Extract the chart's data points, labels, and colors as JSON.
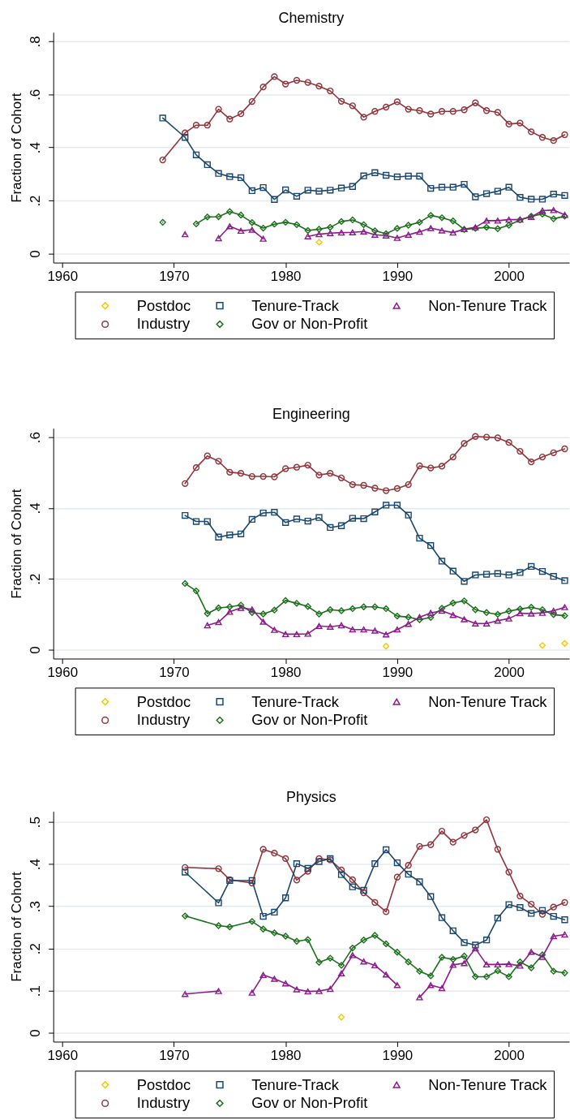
{
  "chart_data": [
    {
      "type": "line",
      "title": "Chemistry",
      "ylabel": "Fraction of Cohort",
      "x": [
        1969,
        1971,
        1972,
        1973,
        1974,
        1975,
        1976,
        1977,
        1978,
        1979,
        1980,
        1981,
        1982,
        1983,
        1984,
        1985,
        1986,
        1987,
        1988,
        1989,
        1990,
        1991,
        1992,
        1993,
        1994,
        1995,
        1996,
        1997,
        1998,
        1999,
        2000,
        2001,
        2002,
        2003,
        2004,
        2005
      ],
      "series": [
        {
          "name": "Postdoc",
          "type": "scatter",
          "color": "#f5c800",
          "marker": "diamond",
          "values": [
            null,
            null,
            null,
            null,
            null,
            null,
            null,
            null,
            null,
            null,
            null,
            null,
            null,
            0.043,
            null,
            null,
            null,
            null,
            null,
            null,
            null,
            null,
            null,
            null,
            null,
            null,
            null,
            null,
            null,
            null,
            null,
            null,
            null,
            null,
            null,
            null
          ]
        },
        {
          "name": "Industry",
          "color": "#90353b",
          "marker": "circle",
          "values": [
            0.353,
            0.455,
            0.484,
            0.484,
            0.544,
            0.507,
            0.527,
            0.573,
            0.628,
            0.667,
            0.639,
            0.653,
            0.645,
            0.631,
            0.613,
            0.574,
            0.557,
            0.514,
            0.536,
            0.552,
            0.572,
            0.544,
            0.539,
            0.526,
            0.536,
            0.536,
            0.542,
            0.568,
            0.539,
            0.532,
            0.488,
            0.492,
            0.459,
            0.438,
            0.426,
            0.448
          ]
        },
        {
          "name": "Tenure-Track",
          "color": "#1a476f",
          "marker": "square",
          "values": [
            0.511,
            0.438,
            0.372,
            0.335,
            0.302,
            0.29,
            0.286,
            0.237,
            0.249,
            0.204,
            0.24,
            0.216,
            0.239,
            0.235,
            0.239,
            0.247,
            0.253,
            0.293,
            0.305,
            0.295,
            0.289,
            0.292,
            0.292,
            0.246,
            0.25,
            0.25,
            0.261,
            0.214,
            0.226,
            0.235,
            0.25,
            0.212,
            0.205,
            0.205,
            0.224,
            0.219
          ]
        },
        {
          "name": "Gov or Non-Profit",
          "color": "#1a701a",
          "marker": "diamond",
          "values": [
            0.118,
            null,
            0.112,
            0.138,
            0.139,
            0.158,
            0.145,
            0.117,
            0.096,
            0.111,
            0.118,
            0.109,
            0.087,
            0.092,
            0.099,
            0.121,
            0.127,
            0.109,
            0.086,
            0.075,
            0.095,
            0.107,
            0.118,
            0.144,
            0.135,
            0.123,
            0.091,
            0.095,
            0.099,
            0.094,
            0.107,
            0.127,
            0.141,
            0.149,
            0.131,
            0.141
          ]
        },
        {
          "name": "Non-Tenure Track",
          "color": "#8b1a8b",
          "marker": "triangle",
          "values": [
            null,
            0.073,
            null,
            null,
            0.058,
            0.103,
            0.086,
            0.09,
            0.056,
            null,
            null,
            null,
            0.065,
            0.073,
            0.077,
            0.079,
            0.08,
            0.083,
            0.071,
            0.068,
            0.059,
            0.071,
            0.082,
            0.096,
            0.087,
            0.079,
            0.092,
            0.099,
            0.124,
            0.124,
            0.128,
            0.128,
            0.138,
            0.162,
            0.164,
            0.146
          ]
        }
      ],
      "xlim": [
        1959.2,
        2005.4
      ],
      "xticks": [
        1960,
        1970,
        1980,
        1990,
        2000
      ],
      "ylim": [
        -0.034,
        0.834
      ],
      "yticks": [
        {
          "value": 0,
          "label": "0"
        },
        {
          "value": 0.2,
          "label": ".2"
        },
        {
          "value": 0.4,
          "label": ".4"
        },
        {
          "value": 0.6,
          "label": ".6"
        },
        {
          "value": 0.8,
          "label": ".8"
        }
      ],
      "grid": "y",
      "legend": "bottom",
      "line_style": "solid"
    },
    {
      "type": "line",
      "title": "Engineering",
      "ylabel": "Fraction of Cohort",
      "x": [
        1971,
        1972,
        1973,
        1974,
        1975,
        1976,
        1977,
        1978,
        1979,
        1980,
        1981,
        1982,
        1983,
        1984,
        1985,
        1986,
        1987,
        1988,
        1989,
        1990,
        1991,
        1992,
        1993,
        1994,
        1995,
        1996,
        1997,
        1998,
        1999,
        2000,
        2001,
        2002,
        2003,
        2004,
        2005
      ],
      "series": [
        {
          "name": "Postdoc",
          "type": "scatter",
          "color": "#f5c800",
          "marker": "diamond",
          "values": [
            null,
            null,
            null,
            null,
            null,
            null,
            null,
            null,
            null,
            null,
            null,
            null,
            null,
            null,
            null,
            null,
            null,
            null,
            0.01,
            null,
            null,
            null,
            null,
            null,
            null,
            null,
            null,
            null,
            null,
            null,
            null,
            null,
            0.012,
            null,
            0.018
          ]
        },
        {
          "name": "Industry",
          "color": "#90353b",
          "marker": "circle",
          "values": [
            0.469,
            0.514,
            0.547,
            0.532,
            0.501,
            0.498,
            0.489,
            0.489,
            0.488,
            0.511,
            0.515,
            0.521,
            0.493,
            0.498,
            0.485,
            0.466,
            0.464,
            0.456,
            0.449,
            0.455,
            0.466,
            0.519,
            0.513,
            0.518,
            0.544,
            0.582,
            0.602,
            0.6,
            0.598,
            0.585,
            0.56,
            0.53,
            0.544,
            0.556,
            0.567
          ]
        },
        {
          "name": "Tenure-Track",
          "color": "#1a476f",
          "marker": "square",
          "values": [
            0.379,
            0.362,
            0.362,
            0.318,
            0.324,
            0.327,
            0.368,
            0.386,
            0.388,
            0.359,
            0.369,
            0.363,
            0.373,
            0.345,
            0.35,
            0.371,
            0.37,
            0.389,
            0.408,
            0.408,
            0.38,
            0.315,
            0.294,
            0.25,
            0.222,
            0.193,
            0.211,
            0.213,
            0.215,
            0.211,
            0.218,
            0.235,
            0.221,
            0.207,
            0.195
          ]
        },
        {
          "name": "Gov or Non-Profit",
          "color": "#1a701a",
          "marker": "diamond",
          "values": [
            0.187,
            0.166,
            0.102,
            0.118,
            0.121,
            0.126,
            0.105,
            0.101,
            0.112,
            0.139,
            0.131,
            0.122,
            0.101,
            0.113,
            0.11,
            0.116,
            0.121,
            0.121,
            0.116,
            0.095,
            0.092,
            0.085,
            0.091,
            0.117,
            0.132,
            0.138,
            0.113,
            0.105,
            0.1,
            0.109,
            0.115,
            0.12,
            0.113,
            0.099,
            0.096
          ]
        },
        {
          "name": "Non-Tenure Track",
          "color": "#8b1a8b",
          "marker": "triangle",
          "values": [
            null,
            null,
            0.069,
            0.078,
            0.107,
            0.118,
            0.114,
            0.079,
            0.056,
            0.044,
            0.044,
            0.045,
            0.067,
            0.065,
            0.069,
            0.057,
            0.057,
            0.054,
            0.043,
            0.057,
            0.073,
            0.092,
            0.104,
            0.11,
            0.098,
            0.086,
            0.074,
            0.074,
            0.082,
            0.088,
            0.103,
            0.102,
            0.104,
            0.11,
            0.12
          ]
        }
      ],
      "xlim": [
        1959.2,
        2005.4
      ],
      "xticks": [
        1960,
        1970,
        1980,
        1990,
        2000
      ],
      "ylim": [
        -0.025,
        0.625
      ],
      "yticks": [
        {
          "value": 0,
          "label": "0"
        },
        {
          "value": 0.2,
          "label": ".2"
        },
        {
          "value": 0.4,
          "label": ".4"
        },
        {
          "value": 0.6,
          "label": ".6"
        }
      ],
      "grid": "y",
      "legend": "bottom",
      "line_style": "solid"
    },
    {
      "type": "line",
      "title": "Physics",
      "ylabel": "Fraction of Cohort",
      "x": [
        1971,
        1974,
        1975,
        1977,
        1978,
        1979,
        1980,
        1981,
        1982,
        1983,
        1984,
        1985,
        1986,
        1987,
        1988,
        1989,
        1990,
        1991,
        1992,
        1993,
        1994,
        1995,
        1996,
        1997,
        1998,
        1999,
        2000,
        2001,
        2002,
        2003,
        2004,
        2005
      ],
      "series": [
        {
          "name": "Postdoc",
          "type": "scatter",
          "color": "#f5c800",
          "marker": "diamond",
          "values": [
            null,
            null,
            null,
            null,
            null,
            null,
            null,
            null,
            null,
            null,
            null,
            0.037,
            null,
            null,
            null,
            null,
            null,
            null,
            null,
            null,
            null,
            null,
            null,
            null,
            null,
            null,
            null,
            null,
            null,
            null,
            null,
            null
          ]
        },
        {
          "name": "Industry",
          "color": "#90353b",
          "marker": "circle",
          "values": [
            0.392,
            0.389,
            0.363,
            0.355,
            0.435,
            0.426,
            0.413,
            0.362,
            0.383,
            0.413,
            0.41,
            0.386,
            0.363,
            0.332,
            0.309,
            0.287,
            0.369,
            0.397,
            0.442,
            0.446,
            0.478,
            0.452,
            0.468,
            0.481,
            0.505,
            0.435,
            0.381,
            0.324,
            0.305,
            0.281,
            0.298,
            0.309
          ]
        },
        {
          "name": "Tenure-Track",
          "color": "#1a476f",
          "marker": "square",
          "values": [
            0.381,
            0.308,
            0.361,
            0.361,
            0.276,
            0.286,
            0.32,
            0.401,
            0.39,
            0.406,
            0.413,
            0.375,
            0.346,
            0.338,
            0.401,
            0.434,
            0.403,
            0.376,
            0.358,
            0.323,
            0.273,
            0.242,
            0.214,
            0.208,
            0.22,
            0.272,
            0.304,
            0.297,
            0.283,
            0.29,
            0.276,
            0.268
          ]
        },
        {
          "name": "Gov or Non-Profit",
          "color": "#1a701a",
          "marker": "diamond",
          "values": [
            0.277,
            0.254,
            0.251,
            0.264,
            0.246,
            0.237,
            0.229,
            0.217,
            0.221,
            0.167,
            0.177,
            0.16,
            0.201,
            0.22,
            0.231,
            0.211,
            0.191,
            0.168,
            0.146,
            0.135,
            0.179,
            0.174,
            0.182,
            0.133,
            0.133,
            0.147,
            0.133,
            0.168,
            0.154,
            0.185,
            0.146,
            0.142
          ]
        },
        {
          "name": "Non-Tenure Track",
          "color": "#8b1a8b",
          "marker": "triangle",
          "values": [
            0.092,
            0.099,
            null,
            0.095,
            0.137,
            0.128,
            0.117,
            0.103,
            0.098,
            0.099,
            0.104,
            0.141,
            0.184,
            0.169,
            0.16,
            0.138,
            0.113,
            null,
            0.084,
            0.113,
            0.106,
            0.161,
            0.165,
            0.2,
            0.162,
            0.162,
            0.163,
            0.159,
            0.192,
            0.18,
            0.229,
            0.233
          ]
        }
      ],
      "xlim": [
        1959.2,
        2005.4
      ],
      "xticks": [
        1960,
        1970,
        1980,
        1990,
        2000
      ],
      "ylim": [
        -0.021,
        0.525
      ],
      "yticks": [
        {
          "value": 0,
          "label": "0"
        },
        {
          "value": 0.1,
          "label": ".1"
        },
        {
          "value": 0.2,
          "label": ".2"
        },
        {
          "value": 0.3,
          "label": ".3"
        },
        {
          "value": 0.4,
          "label": ".4"
        },
        {
          "value": 0.5,
          "label": ".5"
        }
      ],
      "grid": "y",
      "legend": "bottom",
      "line_style": "solid"
    }
  ]
}
